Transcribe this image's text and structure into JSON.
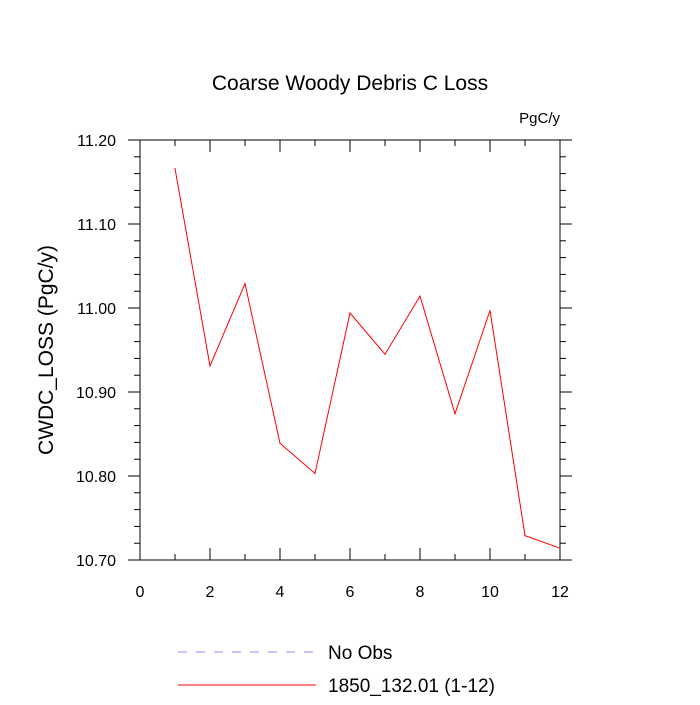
{
  "chart_data": {
    "type": "line",
    "title": "Coarse Woody Debris C Loss",
    "units_label": "PgC/y",
    "ylabel": "CWDC_LOSS  (PgC/y)",
    "xlabel": "",
    "xlim": [
      0,
      12
    ],
    "ylim": [
      10.7,
      11.2
    ],
    "x_ticks": [
      "0",
      "2",
      "4",
      "6",
      "8",
      "10",
      "12"
    ],
    "y_ticks": [
      "10.70",
      "10.80",
      "10.90",
      "11.00",
      "11.10",
      "11.20"
    ],
    "grid": false,
    "series": [
      {
        "name": "1850_132.01 (1-12)",
        "color": "#ff0000",
        "x": [
          1,
          2,
          3,
          4,
          5,
          6,
          7,
          8,
          9,
          10,
          11,
          12
        ],
        "y": [
          11.166,
          10.931,
          11.029,
          10.839,
          10.803,
          10.994,
          10.945,
          11.014,
          10.874,
          10.997,
          10.729,
          10.714
        ]
      }
    ],
    "legend": [
      {
        "label": "No Obs",
        "color": "#8c8cff",
        "style": "dashed"
      },
      {
        "label": "1850_132.01 (1-12)",
        "color": "#ff0000",
        "style": "solid"
      }
    ],
    "legend_position": "bottom"
  }
}
